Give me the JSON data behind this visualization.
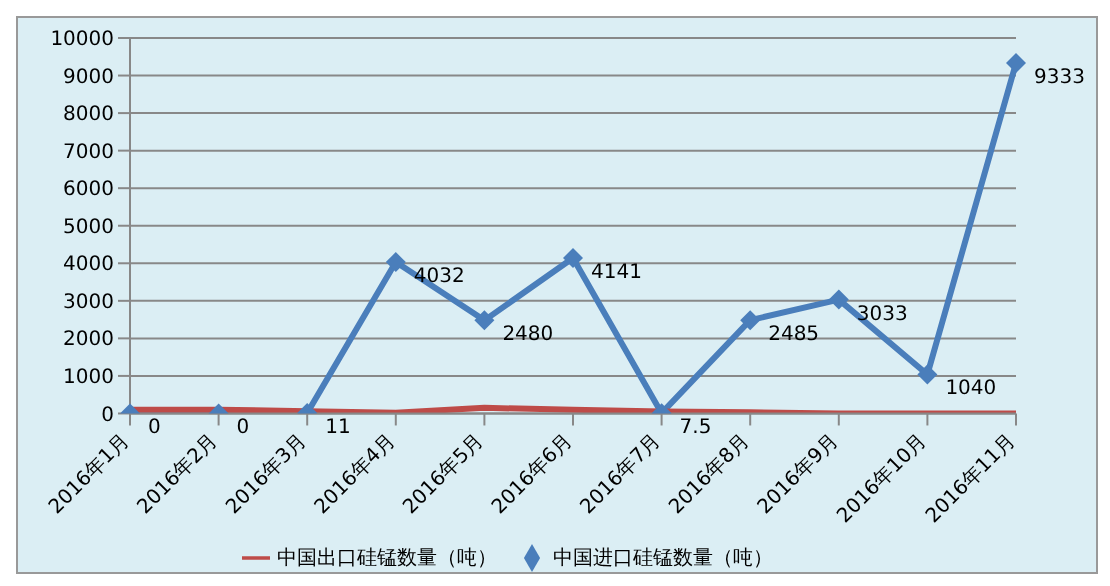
{
  "chart_data": {
    "type": "line",
    "categories": [
      "2016年1月",
      "2016年2月",
      "2016年3月",
      "2016年4月",
      "2016年5月",
      "2016年6月",
      "2016年7月",
      "2016年8月",
      "2016年9月",
      "2016年10月",
      "2016年11月"
    ],
    "series": [
      {
        "name": "中国进口硅锰数量（吨）",
        "color": "#4a7ebb",
        "marker": "diamond",
        "values": [
          0,
          0,
          11,
          4032,
          2480,
          4141,
          7.5,
          2485,
          3033,
          1040,
          9333
        ],
        "value_labels": [
          "0",
          "0",
          "11",
          "4032",
          "2480",
          "4141",
          "7.5",
          "2485",
          "3033",
          "1040",
          "9333"
        ]
      },
      {
        "name": "中国出口硅锰数量（吨）",
        "color": "#be4b48",
        "marker": "none",
        "values": [
          100,
          100,
          60,
          20,
          150,
          100,
          50,
          30,
          0,
          0,
          0
        ]
      }
    ],
    "ylim": [
      0,
      10000
    ],
    "yticks": [
      0,
      1000,
      2000,
      3000,
      4000,
      5000,
      6000,
      7000,
      8000,
      9000,
      10000
    ],
    "grid": "y",
    "legend": "bottom"
  }
}
